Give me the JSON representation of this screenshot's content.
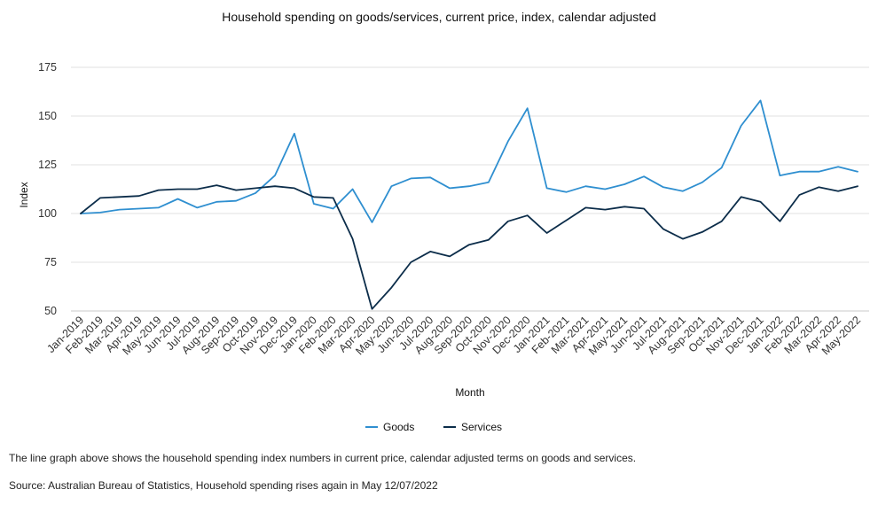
{
  "chart_data": {
    "type": "line",
    "title": "Household spending on goods/services, current price, index, calendar adjusted",
    "xlabel": "Month",
    "ylabel": "Index",
    "ylim": [
      50,
      175
    ],
    "yticks": [
      50,
      75,
      100,
      125,
      150,
      175
    ],
    "grid": "horizontal",
    "legend_position": "bottom",
    "categories": [
      "Jan-2019",
      "Feb-2019",
      "Mar-2019",
      "Apr-2019",
      "May-2019",
      "Jun-2019",
      "Jul-2019",
      "Aug-2019",
      "Sep-2019",
      "Oct-2019",
      "Nov-2019",
      "Dec-2019",
      "Jan-2020",
      "Feb-2020",
      "Mar-2020",
      "Apr-2020",
      "May-2020",
      "Jun-2020",
      "Jul-2020",
      "Aug-2020",
      "Sep-2020",
      "Oct-2020",
      "Nov-2020",
      "Dec-2020",
      "Jan-2021",
      "Feb-2021",
      "Mar-2021",
      "Apr-2021",
      "May-2021",
      "Jun-2021",
      "Jul-2021",
      "Aug-2021",
      "Sep-2021",
      "Oct-2021",
      "Nov-2021",
      "Dec-2021",
      "Jan-2022",
      "Feb-2022",
      "Mar-2022",
      "Apr-2022",
      "May-2022"
    ],
    "series": [
      {
        "name": "Goods",
        "color": "#2f8fd0",
        "values": [
          100,
          100.5,
          102,
          102.5,
          103,
          107.5,
          103,
          106,
          106.5,
          110.5,
          119.5,
          141,
          105,
          102.5,
          112.5,
          95.5,
          114,
          118,
          118.5,
          113,
          114,
          116,
          137,
          154,
          113,
          111,
          114,
          112.5,
          115,
          119,
          113.5,
          111.5,
          116,
          123.5,
          145,
          158,
          119.5,
          121.5,
          121.5,
          124,
          121.5
        ]
      },
      {
        "name": "Services",
        "color": "#0c2d4a",
        "values": [
          100,
          108,
          108.5,
          109,
          112,
          112.5,
          112.5,
          114.5,
          112,
          113,
          114,
          113,
          108.5,
          108,
          87,
          51,
          62,
          75,
          80.5,
          78,
          84,
          86.5,
          96,
          99,
          90,
          96.5,
          103,
          102,
          103.5,
          102.5,
          92,
          87,
          90.5,
          96,
          108.5,
          106,
          96,
          109.5,
          113.5,
          111.5,
          114
        ]
      }
    ]
  },
  "notes": {
    "description": "The line graph above shows the household spending index numbers in current price, calendar adjusted terms on goods and services.",
    "source": "Source: Australian Bureau of Statistics, Household spending rises again in May 12/07/2022"
  }
}
